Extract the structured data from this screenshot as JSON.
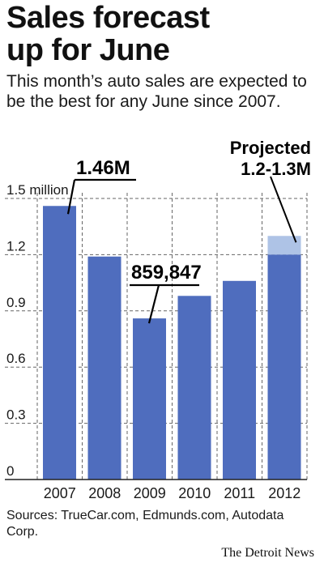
{
  "title_lines": [
    "Sales forecast",
    "up for June"
  ],
  "subtitle": "This month’s auto sales are expected to be the best for any June since 2007.",
  "sources": "Sources: TrueCar.com, Edmunds.com, Autodata Corp.",
  "credit": "The Detroit News",
  "colors": {
    "bar": "#4f6dbe",
    "projected": "#aec3e6",
    "grid": "#666666",
    "callout": "#000000"
  },
  "chart_data": {
    "type": "bar",
    "categories": [
      "2007",
      "2008",
      "2009",
      "2010",
      "2011",
      "2012"
    ],
    "values": [
      1.46,
      1.19,
      0.859847,
      0.98,
      1.06,
      1.2
    ],
    "projected_range": {
      "category": "2012",
      "low": 1.2,
      "high": 1.3
    },
    "ylim": [
      0,
      1.5
    ],
    "yticks": [
      {
        "value": 0,
        "label": "0"
      },
      {
        "value": 0.3,
        "label": "0.3"
      },
      {
        "value": 0.6,
        "label": "0.6"
      },
      {
        "value": 0.9,
        "label": "0.9"
      },
      {
        "value": 1.2,
        "label": "1.2"
      },
      {
        "value": 1.5,
        "label": "1.5 million"
      }
    ],
    "grid": true,
    "annotations": [
      {
        "category": "2007",
        "lines": [
          "1.46M"
        ]
      },
      {
        "category": "2009",
        "lines": [
          "859,847"
        ]
      },
      {
        "category": "2012",
        "lines": [
          "Projected",
          "1.2-1.3M"
        ]
      }
    ]
  }
}
